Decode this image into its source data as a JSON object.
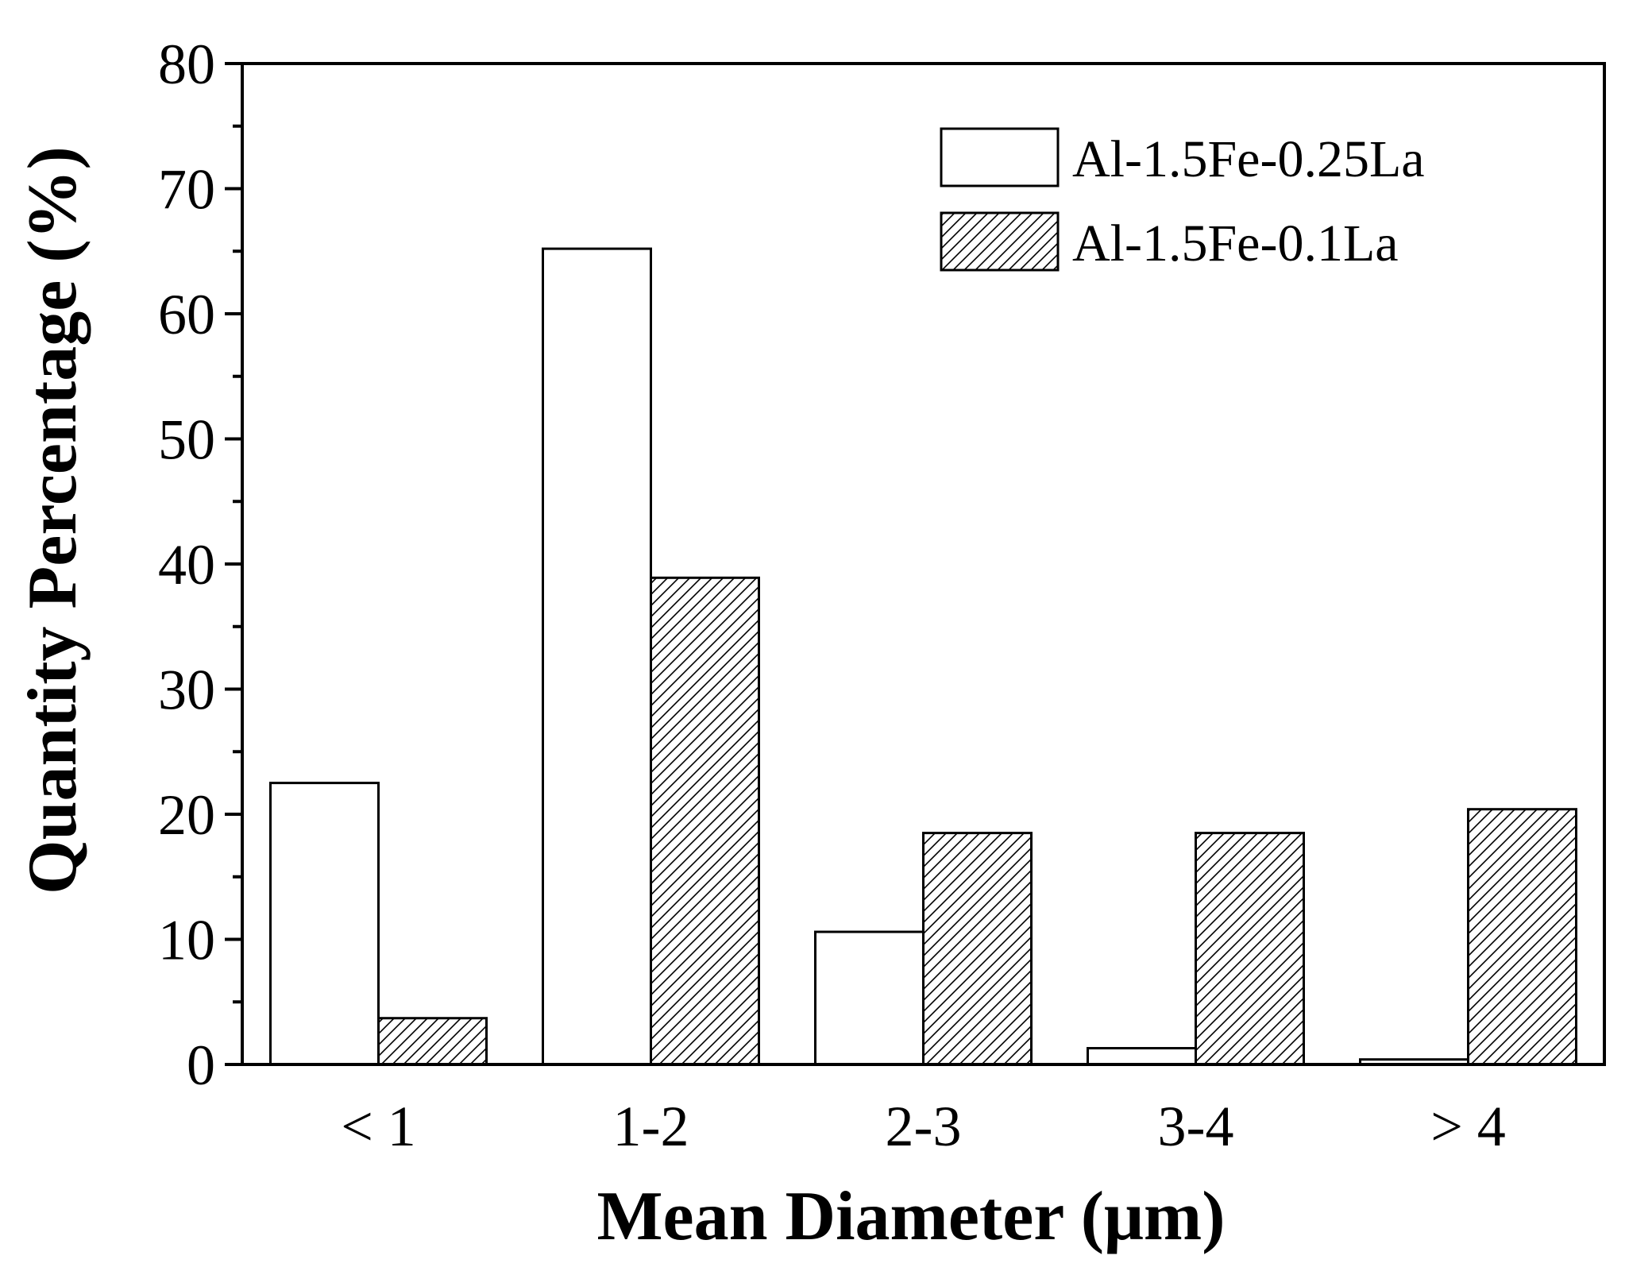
{
  "chart_data": {
    "type": "bar",
    "title": "",
    "xlabel": "Mean Diameter (μm)",
    "ylabel": "Quantity Percentage (%)",
    "ylim": [
      0,
      80
    ],
    "yticks": [
      0,
      10,
      20,
      30,
      40,
      50,
      60,
      70,
      80
    ],
    "categories": [
      "< 1",
      "1-2",
      "2-3",
      "3-4",
      "> 4"
    ],
    "series": [
      {
        "name": "Al-1.5Fe-0.25La",
        "fill": "none",
        "values": [
          22.5,
          65.2,
          10.6,
          1.3,
          0.4
        ]
      },
      {
        "name": "Al-1.5Fe-0.1La",
        "fill": "hatched",
        "values": [
          3.7,
          38.9,
          18.5,
          18.5,
          20.4
        ]
      }
    ],
    "legend_position": "top-right",
    "grid": false,
    "colors": {
      "axis": "#000000",
      "bar_edge": "#000000",
      "background": "#ffffff"
    }
  }
}
